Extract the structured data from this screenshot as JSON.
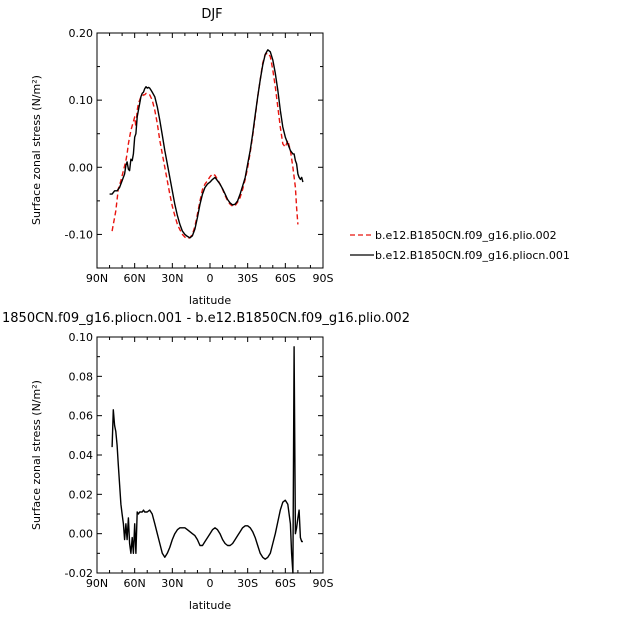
{
  "figure": {
    "title_top": "DJF",
    "title_bottom": "1850CN.f09_g16.pliocn.001 - b.e12.B1850CN.f09_g16.plio.002"
  },
  "chart_data": [
    {
      "type": "line",
      "title": "DJF",
      "xlabel": "latitude",
      "ylabel": "Surface zonal stress (N/m²)",
      "xlim": [
        90,
        -90
      ],
      "ylim": [
        -0.15,
        0.2
      ],
      "x_ticks": [
        90,
        60,
        30,
        0,
        -30,
        -60,
        -90
      ],
      "x_tick_labels": [
        "90N",
        "60N",
        "30N",
        "0",
        "30S",
        "60S",
        "90S"
      ],
      "y_ticks": [
        -0.1,
        0.0,
        0.1,
        0.2
      ],
      "y_tick_labels": [
        "-0.10",
        "0.00",
        "0.10",
        "0.20"
      ],
      "legend_position": "right",
      "series": [
        {
          "name": "b.e12.B1850CN.f09_g16.plio.002",
          "color": "#e8140f",
          "dash": "dashed",
          "x": [
            78,
            77,
            76,
            75,
            74,
            73,
            71,
            69,
            67,
            66,
            65,
            64,
            63,
            62,
            61,
            60,
            59,
            58,
            57,
            56,
            55,
            54,
            53,
            52,
            51,
            50,
            48,
            46,
            44,
            42,
            40,
            38,
            36,
            34,
            32,
            30,
            28,
            26,
            24,
            22,
            20,
            18,
            16,
            14,
            12,
            10,
            8,
            6,
            4,
            2,
            0,
            -2,
            -4,
            -6,
            -8,
            -10,
            -12,
            -14,
            -16,
            -18,
            -20,
            -22,
            -24,
            -26,
            -28,
            -30,
            -32,
            -34,
            -36,
            -38,
            -40,
            -42,
            -44,
            -46,
            -48,
            -50,
            -52,
            -54,
            -56,
            -58,
            -60,
            -62,
            -64,
            -66,
            -68,
            -69,
            -70
          ],
          "y": [
            -0.095,
            -0.085,
            -0.075,
            -0.065,
            -0.048,
            -0.032,
            -0.02,
            -0.005,
            0.01,
            0.02,
            0.035,
            0.045,
            0.055,
            0.062,
            0.068,
            0.075,
            0.06,
            0.085,
            0.095,
            0.1,
            0.105,
            0.105,
            0.108,
            0.108,
            0.11,
            0.11,
            0.108,
            0.1,
            0.085,
            0.065,
            0.04,
            0.02,
            0.0,
            -0.02,
            -0.04,
            -0.058,
            -0.072,
            -0.085,
            -0.093,
            -0.1,
            -0.104,
            -0.106,
            -0.105,
            -0.1,
            -0.088,
            -0.07,
            -0.05,
            -0.033,
            -0.025,
            -0.02,
            -0.014,
            -0.01,
            -0.012,
            -0.018,
            -0.025,
            -0.033,
            -0.042,
            -0.05,
            -0.055,
            -0.058,
            -0.057,
            -0.052,
            -0.045,
            -0.033,
            -0.018,
            0.0,
            0.022,
            0.047,
            0.075,
            0.105,
            0.13,
            0.155,
            0.168,
            0.17,
            0.165,
            0.145,
            0.12,
            0.09,
            0.06,
            0.035,
            0.03,
            0.04,
            0.025,
            0.0,
            -0.03,
            -0.06,
            -0.085
          ]
        },
        {
          "name": "b.e12.B1850CN.f09_g16.pliocn.001",
          "color": "#000000",
          "dash": "solid",
          "x": [
            80,
            78,
            76,
            74,
            72,
            70,
            68,
            67,
            66,
            65,
            64,
            63,
            62,
            61,
            60,
            59,
            58,
            57,
            56,
            55,
            54,
            53,
            52,
            51,
            50,
            49,
            48,
            47,
            46,
            44,
            42,
            40,
            38,
            36,
            34,
            32,
            30,
            28,
            26,
            24,
            22,
            20,
            18,
            16,
            14,
            12,
            10,
            8,
            6,
            4,
            2,
            0,
            -2,
            -4,
            -6,
            -8,
            -10,
            -12,
            -14,
            -16,
            -18,
            -20,
            -22,
            -24,
            -26,
            -28,
            -30,
            -32,
            -34,
            -36,
            -38,
            -40,
            -42,
            -44,
            -46,
            -48,
            -50,
            -52,
            -54,
            -56,
            -58,
            -60,
            -62,
            -64,
            -66,
            -67,
            -68,
            -69,
            -70,
            -71,
            -72,
            -73,
            -74
          ],
          "y": [
            -0.04,
            -0.04,
            -0.035,
            -0.035,
            -0.03,
            -0.02,
            -0.01,
            0.003,
            0.008,
            -0.003,
            -0.005,
            0.012,
            0.01,
            0.02,
            0.045,
            0.05,
            0.075,
            0.085,
            0.095,
            0.105,
            0.11,
            0.112,
            0.117,
            0.12,
            0.118,
            0.119,
            0.118,
            0.115,
            0.112,
            0.105,
            0.09,
            0.07,
            0.048,
            0.025,
            0.005,
            -0.015,
            -0.035,
            -0.055,
            -0.072,
            -0.085,
            -0.095,
            -0.1,
            -0.103,
            -0.105,
            -0.102,
            -0.092,
            -0.075,
            -0.055,
            -0.04,
            -0.03,
            -0.025,
            -0.022,
            -0.018,
            -0.015,
            -0.02,
            -0.025,
            -0.032,
            -0.04,
            -0.048,
            -0.053,
            -0.056,
            -0.055,
            -0.05,
            -0.04,
            -0.028,
            -0.015,
            0.005,
            0.025,
            0.05,
            0.078,
            0.105,
            0.13,
            0.152,
            0.168,
            0.175,
            0.172,
            0.16,
            0.14,
            0.115,
            0.085,
            0.06,
            0.045,
            0.035,
            0.025,
            0.02,
            0.02,
            0.01,
            0.005,
            -0.01,
            -0.015,
            -0.018,
            -0.015,
            -0.022
          ]
        }
      ]
    },
    {
      "type": "line",
      "title": "1850CN.f09_g16.pliocn.001 - b.e12.B1850CN.f09_g16.plio.002",
      "xlabel": "latitude",
      "ylabel": "Surface zonal stress (N/m²)",
      "xlim": [
        90,
        -90
      ],
      "ylim": [
        -0.02,
        0.1
      ],
      "x_ticks": [
        90,
        60,
        30,
        0,
        -30,
        -60,
        -90
      ],
      "x_tick_labels": [
        "90N",
        "60N",
        "30N",
        "0",
        "30S",
        "60S",
        "90S"
      ],
      "y_ticks": [
        -0.02,
        0.0,
        0.02,
        0.04,
        0.06,
        0.08,
        0.1
      ],
      "y_tick_labels": [
        "-0.02",
        "0.00",
        "0.02",
        "0.04",
        "0.06",
        "0.08",
        "0.10"
      ],
      "series": [
        {
          "color": "#000000",
          "x": [
            78,
            77,
            76,
            75,
            74,
            73,
            72,
            71,
            70,
            69,
            68,
            67,
            66,
            65,
            64,
            63,
            62,
            61,
            60,
            59,
            58,
            57,
            56,
            55,
            54,
            53,
            52,
            50,
            48,
            46,
            44,
            42,
            40,
            38,
            36,
            34,
            32,
            30,
            28,
            26,
            24,
            22,
            20,
            18,
            16,
            14,
            12,
            10,
            8,
            6,
            4,
            2,
            0,
            -2,
            -4,
            -6,
            -8,
            -10,
            -12,
            -14,
            -16,
            -18,
            -20,
            -22,
            -24,
            -26,
            -28,
            -30,
            -32,
            -34,
            -36,
            -38,
            -40,
            -42,
            -44,
            -46,
            -48,
            -50,
            -52,
            -54,
            -56,
            -58,
            -60,
            -62,
            -64,
            -65,
            -66,
            -67,
            -68,
            -69,
            -70,
            -71,
            -72,
            -73,
            -74
          ],
          "y": [
            0.044,
            0.063,
            0.055,
            0.052,
            0.045,
            0.035,
            0.025,
            0.015,
            0.01,
            0.005,
            -0.003,
            0.005,
            -0.003,
            0.008,
            -0.005,
            -0.01,
            -0.002,
            -0.01,
            0.005,
            -0.01,
            0.011,
            0.01,
            0.011,
            0.011,
            0.011,
            0.012,
            0.011,
            0.011,
            0.012,
            0.01,
            0.005,
            0.0,
            -0.005,
            -0.01,
            -0.012,
            -0.01,
            -0.007,
            -0.003,
            0.0,
            0.002,
            0.003,
            0.003,
            0.003,
            0.002,
            0.001,
            0.0,
            -0.001,
            -0.003,
            -0.006,
            -0.006,
            -0.004,
            -0.002,
            0.0,
            0.002,
            0.003,
            0.002,
            0.0,
            -0.003,
            -0.005,
            -0.006,
            -0.006,
            -0.005,
            -0.003,
            -0.001,
            0.001,
            0.003,
            0.004,
            0.004,
            0.003,
            0.001,
            -0.002,
            -0.006,
            -0.01,
            -0.012,
            -0.013,
            -0.012,
            -0.01,
            -0.005,
            0.0,
            0.006,
            0.012,
            0.016,
            0.017,
            0.015,
            0.005,
            -0.01,
            -0.02,
            0.095,
            0.0,
            0.003,
            0.008,
            0.012,
            -0.002,
            -0.004,
            -0.004
          ]
        }
      ]
    }
  ]
}
